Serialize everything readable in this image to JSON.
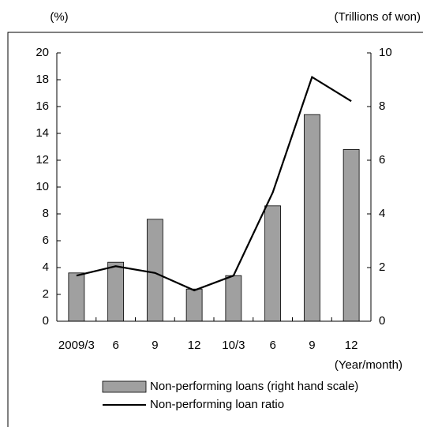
{
  "chart_data": {
    "type": "combo",
    "y_label": "(%)",
    "y2_label": "(Trillions of won)",
    "x_label": "(Year/month)",
    "categories": [
      "2009/3",
      "6",
      "9",
      "12",
      "10/3",
      "6",
      "9",
      "12"
    ],
    "series": [
      {
        "name": "Non-performing loans (right hand scale)",
        "type": "bar",
        "axis": "y2",
        "color": "#a0a0a0",
        "values": [
          1.8,
          2.2,
          3.8,
          1.2,
          1.7,
          4.3,
          7.7,
          6.4
        ]
      },
      {
        "name": "Non-performing loan ratio",
        "type": "line",
        "color": "#000000",
        "values": [
          3.4,
          4.1,
          3.6,
          2.3,
          3.4,
          9.6,
          18.2,
          16.4
        ]
      }
    ],
    "ylim": [
      0,
      20
    ],
    "yticks": [
      0,
      2,
      4,
      6,
      8,
      10,
      12,
      14,
      16,
      18,
      20
    ],
    "y2lim": [
      0,
      10
    ],
    "y2ticks": [
      0,
      2,
      4,
      6,
      8,
      10
    ]
  }
}
